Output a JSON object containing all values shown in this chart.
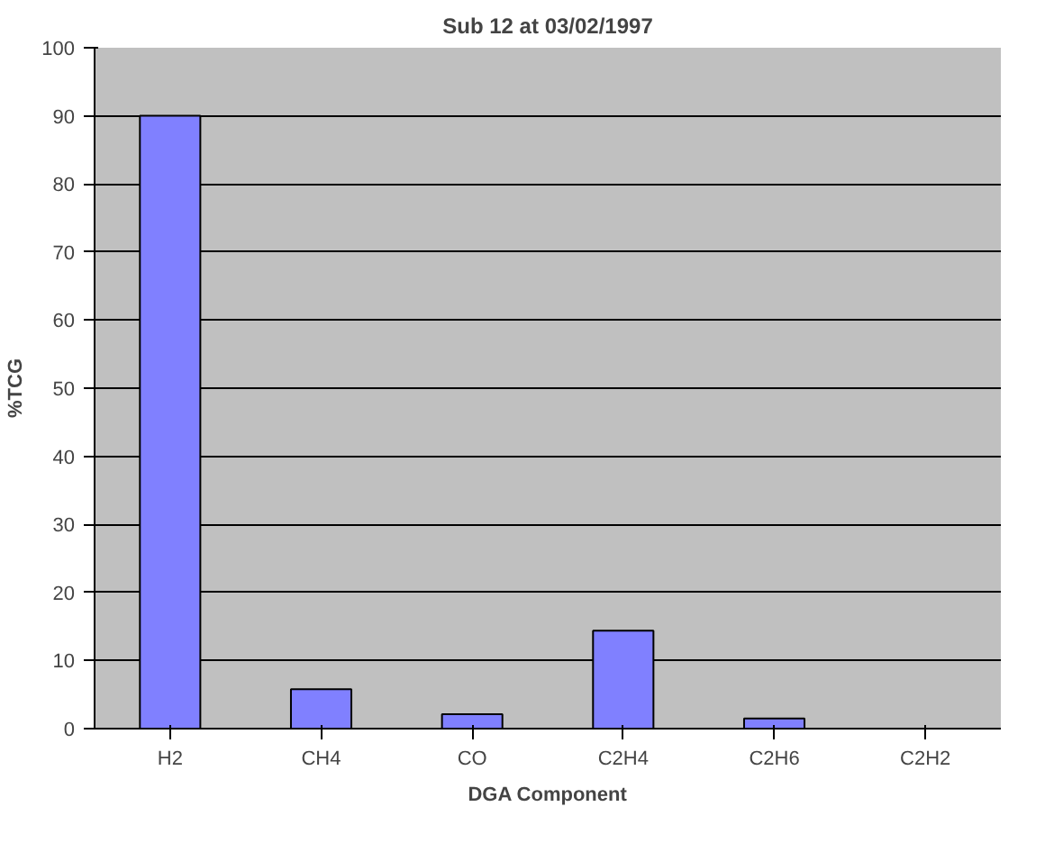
{
  "chart_data": {
    "type": "bar",
    "title": "Sub 12 at 03/02/1997",
    "xlabel": "DGA Component",
    "ylabel": "%TCG",
    "categories": [
      "H2",
      "CH4",
      "CO",
      "C2H4",
      "C2H6",
      "C2H2"
    ],
    "values": [
      90,
      5.8,
      2.1,
      14.4,
      1.5,
      0
    ],
    "color": "#8080ff",
    "ylim": [
      0,
      100
    ],
    "yticks": [
      0,
      10,
      20,
      30,
      40,
      50,
      60,
      70,
      80,
      90,
      100
    ],
    "grid": "y"
  }
}
